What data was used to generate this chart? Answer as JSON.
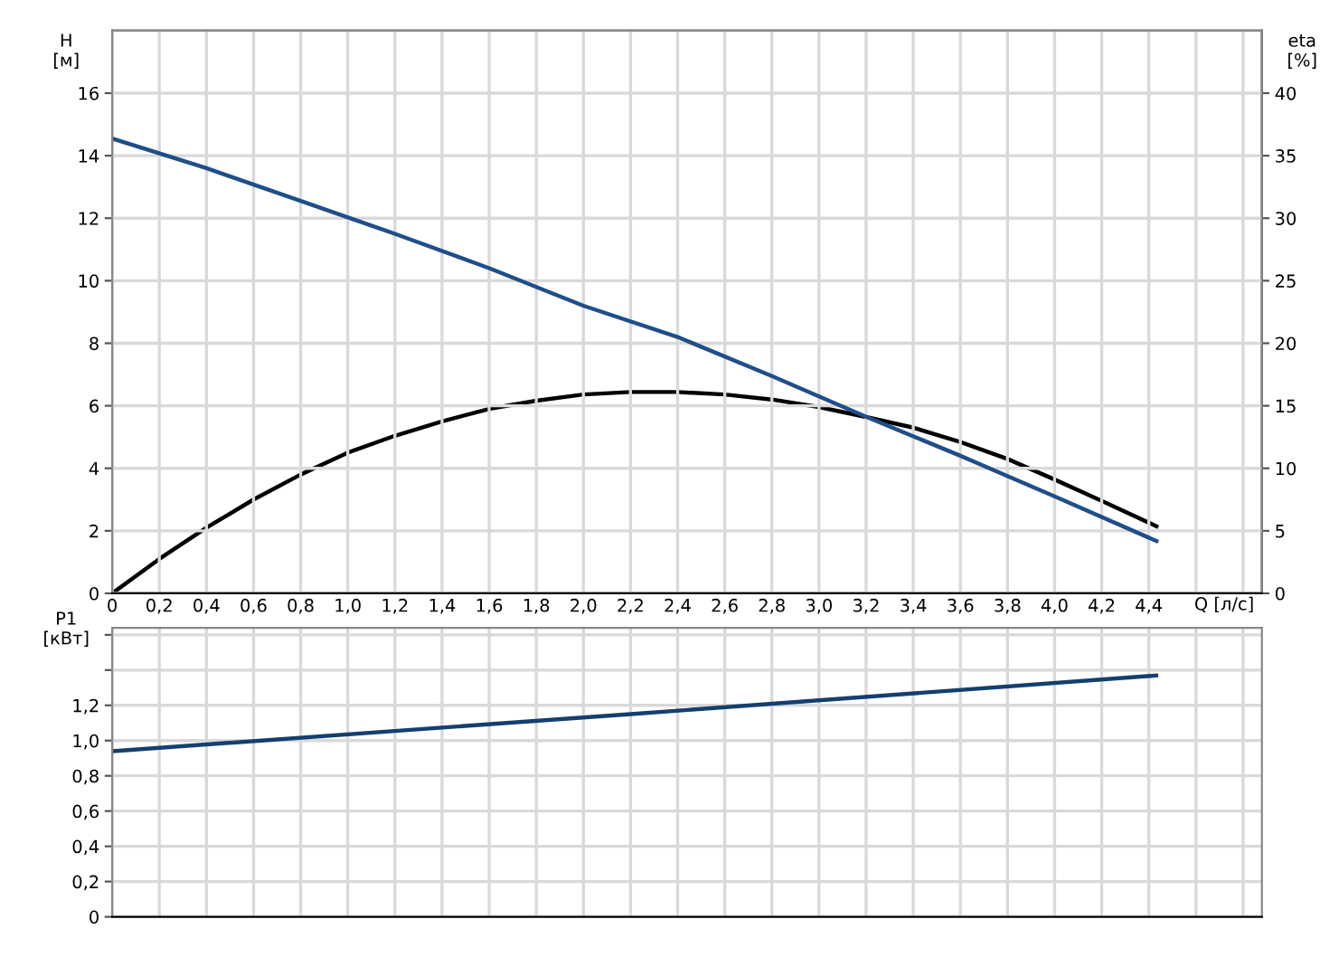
{
  "chart_data": [
    {
      "type": "line",
      "xlabel": "Q [л/с]",
      "ylabel": "H\n[м]",
      "y2label": "eta\n[%]",
      "grid": true,
      "marker": "none",
      "line_style": "solid",
      "xlim": [
        0,
        4.88
      ],
      "xticks": [
        0,
        {
          "value": 0.2,
          "label": "0,2"
        },
        {
          "value": 0.4,
          "label": "0,4"
        },
        {
          "value": 0.6,
          "label": "0,6"
        },
        {
          "value": 0.8,
          "label": "0,8"
        },
        {
          "value": 1.0,
          "label": "1,0"
        },
        {
          "value": 1.2,
          "label": "1,2"
        },
        {
          "value": 1.4,
          "label": "1,4"
        },
        {
          "value": 1.6,
          "label": "1,6"
        },
        {
          "value": 1.8,
          "label": "1,8"
        },
        {
          "value": 2.0,
          "label": "2,0"
        },
        {
          "value": 2.2,
          "label": "2,2"
        },
        {
          "value": 2.4,
          "label": "2,4"
        },
        {
          "value": 2.6,
          "label": "2,6"
        },
        {
          "value": 2.8,
          "label": "2,8"
        },
        {
          "value": 3.0,
          "label": "3,0"
        },
        {
          "value": 3.2,
          "label": "3,2"
        },
        {
          "value": 3.4,
          "label": "3,4"
        },
        {
          "value": 3.6,
          "label": "3,6"
        },
        {
          "value": 3.8,
          "label": "3,8"
        },
        {
          "value": 4.0,
          "label": "4,0"
        },
        {
          "value": 4.2,
          "label": "4,2"
        },
        {
          "value": 4.4,
          "label": "4,4"
        },
        {
          "value": 4.6,
          "label": null
        },
        {
          "value": 4.8,
          "label": null
        }
      ],
      "ylim": [
        0,
        18
      ],
      "yticks": [
        0,
        2,
        4,
        6,
        8,
        10,
        12,
        14,
        16
      ],
      "y2lim": [
        0,
        45
      ],
      "y2ticks": [
        0,
        5,
        10,
        15,
        20,
        25,
        30,
        35,
        40
      ],
      "series": [
        {
          "color": "#1f4e89",
          "x": [
            0,
            0.4,
            0.8,
            1.2,
            1.6,
            2.0,
            2.4,
            2.8,
            3.2,
            3.6,
            4.0,
            4.44
          ],
          "values": [
            14.55,
            13.6,
            12.55,
            11.5,
            10.4,
            9.2,
            8.2,
            6.95,
            5.65,
            4.4,
            3.1,
            1.65
          ]
        },
        {
          "color": "#000000",
          "axis": "y2",
          "x": [
            0,
            0.2,
            0.4,
            0.6,
            0.8,
            1.0,
            1.2,
            1.4,
            1.6,
            1.8,
            2.0,
            2.2,
            2.4,
            2.6,
            2.8,
            3.0,
            3.2,
            3.4,
            3.6,
            3.8,
            4.0,
            4.2,
            4.44
          ],
          "values": [
            0,
            2.75,
            5.25,
            7.5,
            9.5,
            11.25,
            12.6,
            13.75,
            14.75,
            15.4,
            15.9,
            16.1,
            16.1,
            15.9,
            15.5,
            14.9,
            14.1,
            13.25,
            12.1,
            10.75,
            9.1,
            7.4,
            5.3
          ]
        }
      ]
    },
    {
      "type": "line",
      "ylabel": "P1\n[кВт]",
      "grid": true,
      "marker": "none",
      "line_style": "solid",
      "tick_labels": "y",
      "xlim": [
        0,
        4.88
      ],
      "xticks": [
        0,
        0.2,
        0.4,
        0.6,
        0.8,
        1.0,
        1.2,
        1.4,
        1.6,
        1.8,
        2.0,
        2.2,
        2.4,
        2.6,
        2.8,
        3.0,
        3.2,
        3.4,
        3.6,
        3.8,
        4.0,
        4.2,
        4.4,
        4.6,
        4.8
      ],
      "ylim": [
        0,
        1.64
      ],
      "yticks": [
        0,
        {
          "value": 0.2,
          "label": "0,2"
        },
        {
          "value": 0.4,
          "label": "0,4"
        },
        {
          "value": 0.6,
          "label": "0,6"
        },
        {
          "value": 0.8,
          "label": "0,8"
        },
        {
          "value": 1.0,
          "label": "1,0"
        },
        {
          "value": 1.2,
          "label": "1,2"
        },
        {
          "value": 1.4,
          "label": null
        },
        {
          "value": 1.6,
          "label": null
        }
      ],
      "series": [
        {
          "color": "#143f6e",
          "x": [
            0,
            2.2,
            4.44
          ],
          "values": [
            0.94,
            1.15,
            1.37
          ]
        }
      ]
    }
  ]
}
